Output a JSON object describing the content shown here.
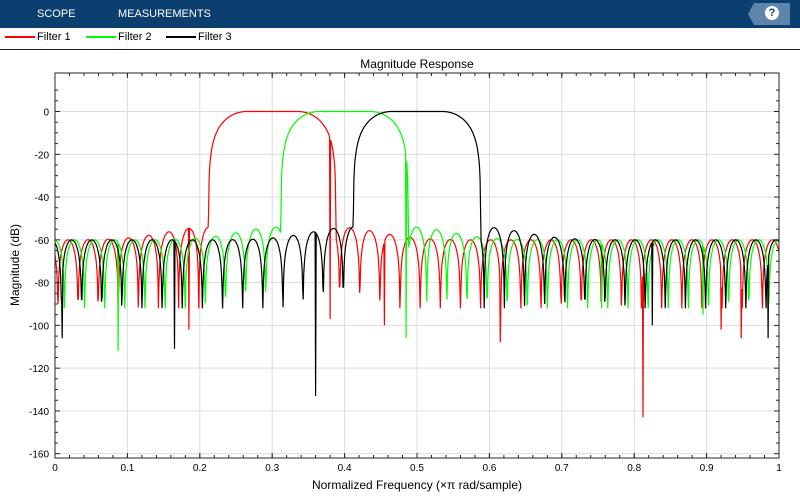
{
  "toolbar": {
    "tabs": [
      "SCOPE",
      "MEASUREMENTS"
    ],
    "help_label": "?"
  },
  "legend": [
    {
      "name": "Filter 1",
      "color": "#ff0000"
    },
    {
      "name": "Filter 2",
      "color": "#00ff00"
    },
    {
      "name": "Filter 3",
      "color": "#000000"
    }
  ],
  "chart_data": {
    "type": "line",
    "title": "Magnitude Response",
    "xlabel": "Normalized Frequency (×π rad/sample)",
    "ylabel": "Magnitude (dB)",
    "xlim": [
      0,
      1
    ],
    "ylim": [
      -162,
      18
    ],
    "xticks": [
      "0",
      "0.1",
      "0.2",
      "0.3",
      "0.4",
      "0.5",
      "0.6",
      "0.7",
      "0.8",
      "0.9",
      "1"
    ],
    "yticks": [
      "0",
      "-20",
      "-40",
      "-60",
      "-80",
      "-100",
      "-120",
      "-140",
      "-160"
    ],
    "grid": true,
    "series": [
      {
        "name": "Filter 1",
        "color": "#ff0000",
        "center": 0.3,
        "passband_halfwidth": 0.035,
        "transition_edge": 0.088,
        "stopband_level": -60,
        "null_spacing": 0.0278,
        "null_phase": 0.004,
        "deep_nulls": [
          [
            0.185,
            -102
          ],
          [
            0.38,
            -97
          ],
          [
            0.455,
            -100
          ],
          [
            0.615,
            -108
          ],
          [
            0.812,
            -143
          ],
          [
            0.92,
            -102
          ],
          [
            0.948,
            -106
          ]
        ]
      },
      {
        "name": "Filter 2",
        "color": "#00ff00",
        "center": 0.4,
        "passband_halfwidth": 0.035,
        "transition_edge": 0.088,
        "stopband_level": -60,
        "null_spacing": 0.0278,
        "null_phase": 0.013,
        "deep_nulls": [
          [
            0.087,
            -112
          ],
          [
            0.485,
            -106
          ],
          [
            0.755,
            -92
          ],
          [
            0.895,
            -95
          ]
        ]
      },
      {
        "name": "Filter 3",
        "color": "#000000",
        "center": 0.5,
        "passband_halfwidth": 0.035,
        "transition_edge": 0.088,
        "stopband_level": -60,
        "null_spacing": 0.0278,
        "null_phase": 0.009,
        "deep_nulls": [
          [
            0.01,
            -106
          ],
          [
            0.165,
            -111
          ],
          [
            0.36,
            -133
          ],
          [
            0.825,
            -100
          ],
          [
            0.985,
            -106
          ]
        ]
      }
    ]
  }
}
